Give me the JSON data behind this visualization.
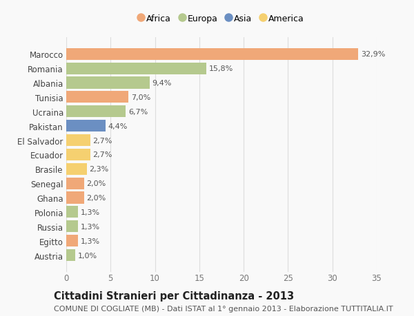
{
  "countries": [
    "Marocco",
    "Romania",
    "Albania",
    "Tunisia",
    "Ucraina",
    "Pakistan",
    "El Salvador",
    "Ecuador",
    "Brasile",
    "Senegal",
    "Ghana",
    "Polonia",
    "Russia",
    "Egitto",
    "Austria"
  ],
  "values": [
    32.9,
    15.8,
    9.4,
    7.0,
    6.7,
    4.4,
    2.7,
    2.7,
    2.3,
    2.0,
    2.0,
    1.3,
    1.3,
    1.3,
    1.0
  ],
  "labels": [
    "32,9%",
    "15,8%",
    "9,4%",
    "7,0%",
    "6,7%",
    "4,4%",
    "2,7%",
    "2,7%",
    "2,3%",
    "2,0%",
    "2,0%",
    "1,3%",
    "1,3%",
    "1,3%",
    "1,0%"
  ],
  "continents": [
    "Africa",
    "Europa",
    "Europa",
    "Africa",
    "Europa",
    "Asia",
    "America",
    "America",
    "America",
    "Africa",
    "Africa",
    "Europa",
    "Europa",
    "Africa",
    "Europa"
  ],
  "colors": {
    "Africa": "#F0A878",
    "Europa": "#B5C98E",
    "Asia": "#6B8FC2",
    "America": "#F5D070"
  },
  "legend_order": [
    "Africa",
    "Europa",
    "Asia",
    "America"
  ],
  "title": "Cittadini Stranieri per Cittadinanza - 2013",
  "subtitle": "COMUNE DI COGLIATE (MB) - Dati ISTAT al 1° gennaio 2013 - Elaborazione TUTTITALIA.IT",
  "xlim": [
    0,
    35
  ],
  "xticks": [
    0,
    5,
    10,
    15,
    20,
    25,
    30,
    35
  ],
  "bg_color": "#f9f9f9",
  "grid_color": "#dddddd",
  "bar_height": 0.82,
  "title_fontsize": 10.5,
  "subtitle_fontsize": 8.0,
  "label_fontsize": 8.0,
  "ytick_fontsize": 8.5,
  "xtick_fontsize": 8.5
}
